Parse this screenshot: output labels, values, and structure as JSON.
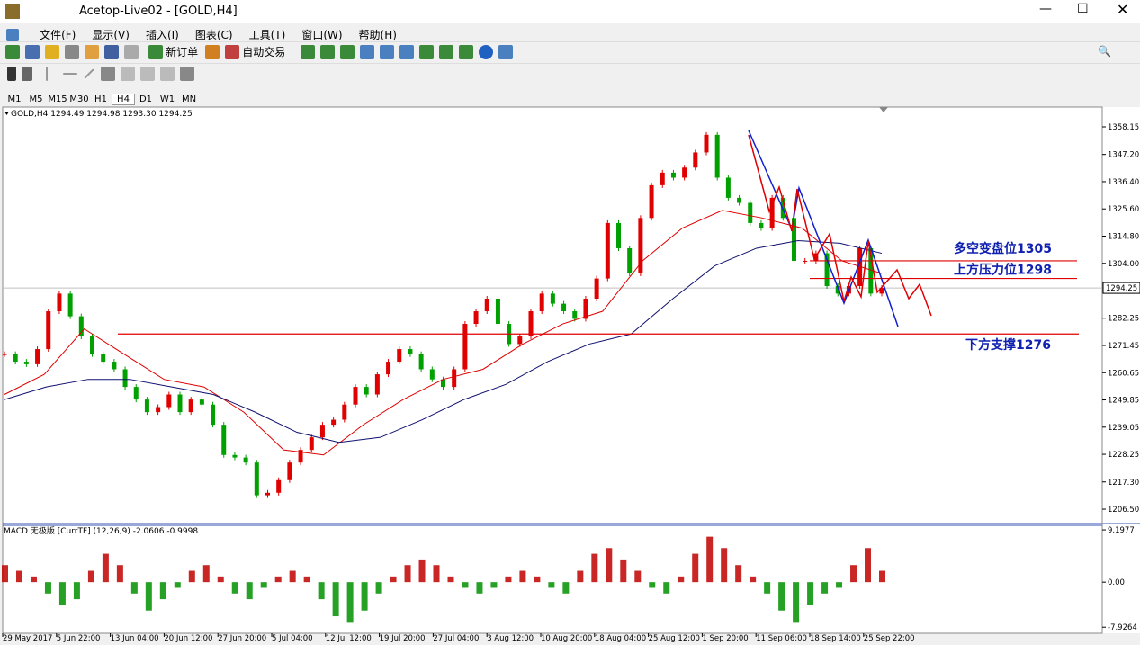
{
  "window": {
    "title": "Acetop-Live02 - [GOLD,H4]"
  },
  "menu": [
    "文件(F)",
    "显示(V)",
    "插入(I)",
    "图表(C)",
    "工具(T)",
    "窗口(W)",
    "帮助(H)"
  ],
  "toolbar": {
    "new_order": "新订单",
    "auto_trade": "自动交易"
  },
  "timeframes": [
    "M1",
    "M5",
    "M15",
    "M30",
    "H1",
    "H4",
    "D1",
    "W1",
    "MN"
  ],
  "chart_data": [
    {
      "type": "candlestick",
      "header": "GOLD,H4 1294.49 1294.98 1293.30 1294.25",
      "categories": [
        "29 May 2017",
        "5 Jun 22:00",
        "13 Jun 04:00",
        "20 Jun 12:00",
        "27 Jun 20:00",
        "5 Jul 04:00",
        "12 Jul 12:00",
        "19 Jul 20:00",
        "27 Jul 04:00",
        "3 Aug 12:00",
        "10 Aug 20:00",
        "18 Aug 04:00",
        "25 Aug 12:00",
        "1 Sep 20:00",
        "11 Sep 06:00",
        "18 Sep 14:00",
        "25 Sep 22:00"
      ],
      "closes": [
        1268,
        1265,
        1264,
        1270,
        1285,
        1292,
        1283,
        1275,
        1268,
        1265,
        1262,
        1255,
        1250,
        1245,
        1247,
        1252,
        1245,
        1250,
        1248,
        1240,
        1228,
        1227,
        1225,
        1212,
        1213,
        1218,
        1225,
        1230,
        1235,
        1240,
        1242,
        1248,
        1255,
        1252,
        1260,
        1265,
        1270,
        1268,
        1262,
        1258,
        1255,
        1262,
        1280,
        1285,
        1290,
        1280,
        1272,
        1275,
        1285,
        1292,
        1288,
        1285,
        1282,
        1290,
        1298,
        1320,
        1310,
        1300,
        1322,
        1335,
        1340,
        1338,
        1342,
        1348,
        1355,
        1338,
        1330,
        1328,
        1320,
        1318,
        1330,
        1322,
        1305,
        1305,
        1308,
        1295,
        1292,
        1295,
        1310,
        1292,
        1294.25
      ],
      "up_color": "#e00000",
      "down_color": "#00a000",
      "ma_red": [
        1252,
        1260,
        1278,
        1268,
        1258,
        1255,
        1245,
        1230,
        1228,
        1240,
        1250,
        1258,
        1262,
        1272,
        1280,
        1285,
        1305,
        1318,
        1325,
        1322,
        1318,
        1305,
        1300
      ],
      "ma_blue": [
        1250,
        1255,
        1258,
        1258,
        1255,
        1252,
        1245,
        1237,
        1233,
        1235,
        1242,
        1250,
        1256,
        1265,
        1272,
        1276,
        1290,
        1303,
        1310,
        1313,
        1312,
        1308
      ],
      "ylim": [
        1200.8,
        1366.0
      ],
      "yticks": [
        {
          "value": 1358.15,
          "label": "1358.15"
        },
        {
          "value": 1347.2,
          "label": "1347.20"
        },
        {
          "value": 1336.4,
          "label": "1336.40"
        },
        {
          "value": 1325.6,
          "label": "1325.60"
        },
        {
          "value": 1314.8,
          "label": "1314.80"
        },
        {
          "value": 1304,
          "label": "1304.00"
        },
        {
          "value": 1282.25,
          "label": "1282.25"
        },
        {
          "value": 1271.45,
          "label": "1271.45"
        },
        {
          "value": 1260.65,
          "label": "1260.65"
        },
        {
          "value": 1249.85,
          "label": "1249.85"
        },
        {
          "value": 1239.05,
          "label": "1239.05"
        },
        {
          "value": 1228.25,
          "label": "1228.25"
        },
        {
          "value": 1217.3,
          "label": "1217.30"
        },
        {
          "value": 1206.5,
          "label": "1206.50"
        }
      ],
      "current_price": {
        "value": 1294.25,
        "label": "1294.25"
      },
      "levels": [
        {
          "value": 1305,
          "label": "多空变盘位1305"
        },
        {
          "value": 1298,
          "label": "上方压力位1298"
        },
        {
          "value": 1276,
          "label": "下方支撑1276"
        }
      ]
    },
    {
      "type": "bar",
      "header": "MACD 无极版 [CurrTF] (12,26,9) -2.0606 -0.9998",
      "values": [
        3,
        2,
        1,
        -2,
        -4,
        -3,
        2,
        5,
        3,
        -2,
        -5,
        -3,
        -1,
        2,
        3,
        1,
        -2,
        -3,
        -1,
        1,
        2,
        1,
        -3,
        -6,
        -7,
        -5,
        -2,
        1,
        3,
        4,
        3,
        1,
        -1,
        -2,
        -1,
        1,
        2,
        1,
        -1,
        -2,
        2,
        5,
        6,
        4,
        2,
        -1,
        -2,
        1,
        5,
        8,
        6,
        3,
        1,
        -2,
        -5,
        -7,
        -4,
        -2,
        -1,
        3,
        6,
        2
      ],
      "pos_color": "#c00000",
      "neg_color": "#009000",
      "ylim": [
        -9.0,
        10.0
      ],
      "yticks": [
        {
          "value": 9.1977,
          "label": "9.1977"
        },
        {
          "value": 0,
          "label": "0.00"
        },
        {
          "value": -7.9264,
          "label": "-7.9264"
        }
      ]
    }
  ]
}
